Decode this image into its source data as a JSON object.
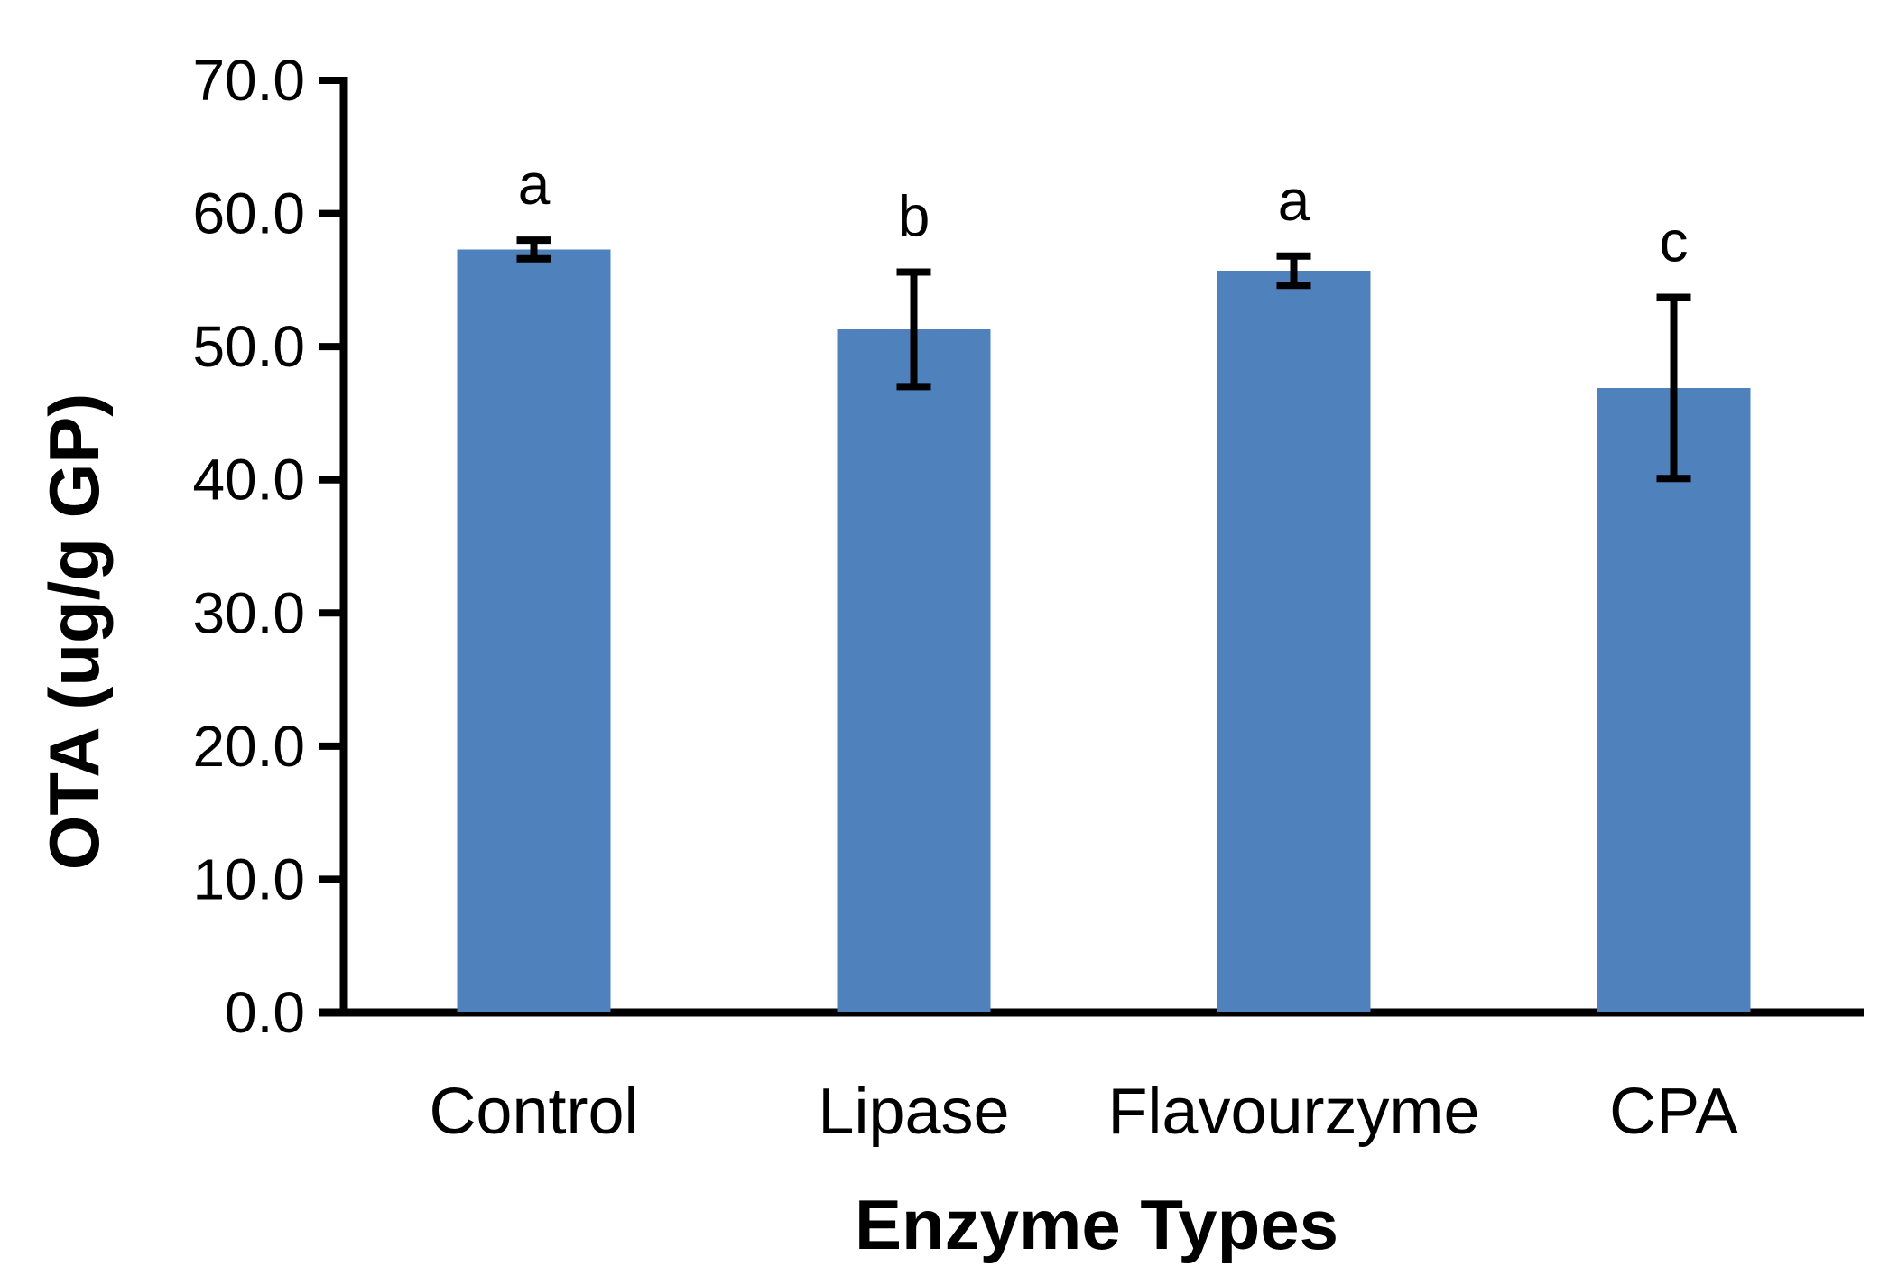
{
  "chart_data": {
    "type": "bar",
    "title": "",
    "categories": [
      "Control",
      "Lipase",
      "Flavourzyme",
      "CPA"
    ],
    "values": [
      57.3,
      51.3,
      55.7,
      46.9
    ],
    "errors": [
      0.7,
      4.3,
      1.1,
      6.8
    ],
    "sig_letters": [
      "a",
      "b",
      "a",
      "c"
    ],
    "xlabel": "Enzyme Types",
    "ylabel": "OTA (ug/g GP)",
    "ylim": [
      0,
      70
    ],
    "ytick_step": 10,
    "ytick_labels": [
      "0.0",
      "10.0",
      "20.0",
      "30.0",
      "40.0",
      "50.0",
      "60.0",
      "70.0"
    ],
    "bar_color": "#4F81BD",
    "axis_color": "#000000",
    "error_bar_color": "#000000",
    "grid": false,
    "legend": false
  }
}
